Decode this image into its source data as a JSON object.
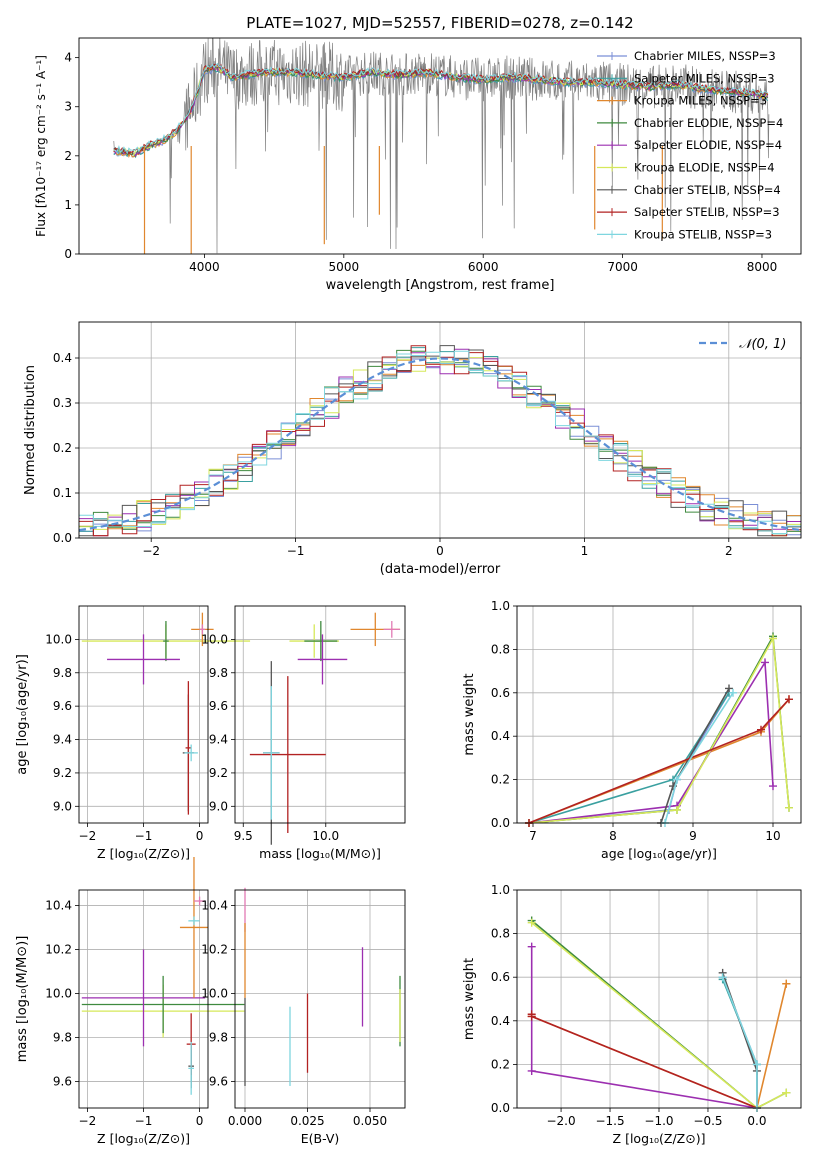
{
  "figure_title": "PLATE=1027, MJD=52557, FIBERID=0278, z=0.142",
  "colors": {
    "Chabrier MILES": "#7b8fd6",
    "Salpeter MILES": "#3aa0a0",
    "Kroupa MILES": "#e0872e",
    "Chabrier ELODIE": "#3f8a3f",
    "Salpeter ELODIE": "#9c2fb0",
    "Kroupa ELODIE": "#d6e85a",
    "Chabrier STELIB": "#555555",
    "Salpeter STELIB": "#b22222",
    "Kroupa STELIB": "#7fd6df",
    "data": "#808080",
    "normal": "#5b8fd6"
  },
  "chart_data": [
    {
      "id": "spectrum",
      "type": "line",
      "title": "PLATE=1027, MJD=52557, FIBERID=0278, z=0.142",
      "xlabel": "wavelength [Angstrom, rest frame]",
      "ylabel": "Flux [f_λ 10^-17 erg cm^-2 s^-1 A^-1]",
      "xlim": [
        3100,
        8280
      ],
      "ylim": [
        0,
        4.4
      ],
      "xticks": [
        4000,
        5000,
        6000,
        7000,
        8000
      ],
      "yticks": [
        0,
        1,
        2,
        3,
        4
      ],
      "grid": false,
      "legend": "right",
      "legend_entries": [
        {
          "label": "Chabrier MILES, N_SSP=3",
          "color": "#7b8fd6"
        },
        {
          "label": "Salpeter MILES, N_SSP=3",
          "color": "#3aa0a0"
        },
        {
          "label": "Kroupa MILES, N_SSP=3",
          "color": "#e0872e"
        },
        {
          "label": "Chabrier ELODIE, N_SSP=4",
          "color": "#3f8a3f"
        },
        {
          "label": "Salpeter ELODIE, N_SSP=4",
          "color": "#9c2fb0"
        },
        {
          "label": "Kroupa ELODIE, N_SSP=4",
          "color": "#d6e85a"
        },
        {
          "label": "Chabrier STELIB, N_SSP=4",
          "color": "#555555"
        },
        {
          "label": "Salpeter STELIB, N_SSP=3",
          "color": "#b22222"
        },
        {
          "label": "Kroupa STELIB, N_SSP=3",
          "color": "#7fd6df"
        }
      ],
      "model_continuum": {
        "x": [
          3350,
          3500,
          3600,
          3700,
          3800,
          3900,
          3950,
          4000,
          4100,
          4200,
          4400,
          4600,
          4800,
          5000,
          5200,
          5400,
          5600,
          5800,
          6000,
          6200,
          6400,
          6600,
          6800,
          7000,
          7200,
          7400,
          7600,
          7800,
          8000,
          8050
        ],
        "y": [
          2.1,
          2.05,
          2.2,
          2.3,
          2.5,
          2.9,
          3.3,
          3.75,
          3.8,
          3.6,
          3.7,
          3.7,
          3.65,
          3.6,
          3.7,
          3.65,
          3.7,
          3.6,
          3.55,
          3.6,
          3.55,
          3.5,
          3.5,
          3.45,
          3.4,
          3.45,
          3.35,
          3.3,
          3.25,
          3.2
        ]
      }
    },
    {
      "id": "residuals",
      "type": "line",
      "xlabel": "(data-model)/error",
      "ylabel": "Normed distribution",
      "xlim": [
        -2.5,
        2.5
      ],
      "ylim": [
        0,
        0.48
      ],
      "xticks": [
        -2,
        -1,
        0,
        1,
        2
      ],
      "yticks": [
        0.0,
        0.1,
        0.2,
        0.3,
        0.4
      ],
      "grid": true,
      "legend": "top-right",
      "legend_entries": [
        {
          "label": "𝒩(0, 1)",
          "color": "#5b8fd6"
        }
      ],
      "bin_width": 0.1,
      "series": [
        {
          "name": "N(0,1)",
          "mu": 0,
          "sigma": 1
        }
      ]
    },
    {
      "id": "age_vs_Z",
      "type": "scatter",
      "xlabel": "Z [log10(Z/Z⊙)]",
      "ylabel": "age [log10(age/yr)]",
      "xlim": [
        -2.15,
        0.15
      ],
      "ylim": [
        8.9,
        10.2
      ],
      "xticks": [
        -2,
        -1,
        0
      ],
      "yticks": [
        9.0,
        9.2,
        9.4,
        9.6,
        9.8,
        10.0
      ],
      "grid": true,
      "points": [
        {
          "color": "#d6e85a",
          "x": -0.6,
          "y": 9.99,
          "xerr": 1.5,
          "yerr": 0.1
        },
        {
          "color": "#3f8a3f",
          "x": -0.6,
          "y": 9.99,
          "xerr": 0.05,
          "yerr": 0.12
        },
        {
          "color": "#9c2fb0",
          "x": -1.0,
          "y": 9.88,
          "xerr": 0.65,
          "yerr": 0.15
        },
        {
          "color": "#e0872e",
          "x": 0.05,
          "y": 10.06,
          "xerr": 0.2,
          "yerr": 0.1
        },
        {
          "color": "#e27ab4",
          "x": 0.05,
          "y": 10.06,
          "xerr": 0.05,
          "yerr": 0.03
        },
        {
          "color": "#555555",
          "x": -0.2,
          "y": 9.32,
          "xerr": 0.1,
          "yerr": 0.35
        },
        {
          "color": "#b22222",
          "x": -0.2,
          "y": 9.35,
          "xerr": 0.05,
          "yerr": 0.4
        },
        {
          "color": "#7fd6df",
          "x": -0.15,
          "y": 9.32,
          "xerr": 0.12,
          "yerr": 0.05
        }
      ]
    },
    {
      "id": "age_vs_mass",
      "type": "scatter",
      "xlabel": "mass [log10(M/M⊙)]",
      "ylabel": "",
      "xlim": [
        9.45,
        10.48
      ],
      "ylim": [
        8.9,
        10.2
      ],
      "xticks": [
        9.5,
        10.0
      ],
      "yticks": [
        9.0,
        9.2,
        9.4,
        9.6,
        9.8,
        10.0
      ],
      "grid": true,
      "points": [
        {
          "color": "#d6e85a",
          "x": 9.93,
          "y": 9.99,
          "xerr": 0.15,
          "yerr": 0.1
        },
        {
          "color": "#3f8a3f",
          "x": 9.97,
          "y": 9.99,
          "xerr": 0.1,
          "yerr": 0.12
        },
        {
          "color": "#9c2fb0",
          "x": 9.98,
          "y": 9.88,
          "xerr": 0.15,
          "yerr": 0.15
        },
        {
          "color": "#e0872e",
          "x": 10.3,
          "y": 10.06,
          "xerr": 0.15,
          "yerr": 0.1
        },
        {
          "color": "#e27ab4",
          "x": 10.4,
          "y": 10.06,
          "xerr": 0.05,
          "yerr": 0.05
        },
        {
          "color": "#555555",
          "x": 9.67,
          "y": 9.32,
          "xerr": 0.05,
          "yerr": 0.55
        },
        {
          "color": "#b22222",
          "x": 9.77,
          "y": 9.31,
          "xerr": 0.23,
          "yerr": 0.47
        },
        {
          "color": "#7fd6df",
          "x": 9.67,
          "y": 9.32,
          "xerr": 0.05,
          "yerr": 0.4
        }
      ]
    },
    {
      "id": "massweight_vs_age",
      "type": "line",
      "xlabel": "age [log10(age/yr)]",
      "ylabel": "mass weight",
      "xlim": [
        6.8,
        10.35
      ],
      "ylim": [
        0,
        1.0
      ],
      "xticks": [
        7,
        8,
        9,
        10
      ],
      "yticks": [
        0.0,
        0.2,
        0.4,
        0.6,
        0.8,
        1.0
      ],
      "grid": true,
      "series": [
        {
          "name": "Chabrier MILES",
          "color": "#7b8fd6",
          "x": [
            6.95,
            8.7,
            8.8,
            9.45
          ],
          "y": [
            0.0,
            0.06,
            0.2,
            0.6
          ]
        },
        {
          "name": "Salpeter MILES",
          "color": "#3aa0a0",
          "x": [
            6.95,
            8.75,
            9.45
          ],
          "y": [
            0.0,
            0.2,
            0.6
          ]
        },
        {
          "name": "Kroupa MILES",
          "color": "#e0872e",
          "x": [
            6.95,
            9.85,
            10.2
          ],
          "y": [
            0.0,
            0.42,
            0.57
          ]
        },
        {
          "name": "Chabrier ELODIE",
          "color": "#3f8a3f",
          "x": [
            6.95,
            8.8,
            10.0,
            10.2
          ],
          "y": [
            0.0,
            0.06,
            0.86,
            0.07
          ]
        },
        {
          "name": "Salpeter ELODIE",
          "color": "#9c2fb0",
          "x": [
            6.95,
            8.8,
            9.9,
            10.0
          ],
          "y": [
            0.0,
            0.08,
            0.74,
            0.17
          ]
        },
        {
          "name": "Kroupa ELODIE",
          "color": "#d6e85a",
          "x": [
            6.95,
            8.8,
            10.0,
            10.2
          ],
          "y": [
            0.0,
            0.06,
            0.85,
            0.07
          ]
        },
        {
          "name": "Chabrier STELIB",
          "color": "#555555",
          "x": [
            8.6,
            8.75,
            9.45
          ],
          "y": [
            0.0,
            0.17,
            0.62
          ]
        },
        {
          "name": "Salpeter STELIB",
          "color": "#b22222",
          "x": [
            6.95,
            9.85,
            10.2
          ],
          "y": [
            0.0,
            0.43,
            0.57
          ]
        },
        {
          "name": "Kroupa STELIB",
          "color": "#7fd6df",
          "x": [
            8.65,
            8.8,
            9.5
          ],
          "y": [
            0.0,
            0.2,
            0.6
          ]
        }
      ]
    },
    {
      "id": "mass_vs_Z",
      "type": "scatter",
      "xlabel": "Z [log10(Z/Z⊙)]",
      "ylabel": "mass [log10(M/M⊙)]",
      "xlim": [
        -2.15,
        0.15
      ],
      "ylim": [
        9.48,
        10.47
      ],
      "xticks": [
        -2,
        -1,
        0
      ],
      "yticks": [
        9.6,
        9.8,
        10.0,
        10.2,
        10.4
      ],
      "grid": true,
      "points": [
        {
          "color": "#d6e85a",
          "x": -0.65,
          "y": 9.92,
          "xerr": 1.45,
          "yerr": 0.12
        },
        {
          "color": "#3f8a3f",
          "x": -0.65,
          "y": 9.95,
          "xerr": 1.45,
          "yerr": 0.13
        },
        {
          "color": "#9c2fb0",
          "x": -1.0,
          "y": 9.98,
          "xerr": 1.1,
          "yerr": 0.22
        },
        {
          "color": "#e0872e",
          "x": -0.1,
          "y": 10.3,
          "xerr": 0.25,
          "yerr": 0.32
        },
        {
          "color": "#e27ab4",
          "x": 0.0,
          "y": 10.42,
          "xerr": 0.1,
          "yerr": 0.02
        },
        {
          "color": "#7fd6df",
          "x": -0.1,
          "y": 10.33,
          "xerr": 0.1,
          "yerr": 0.02
        },
        {
          "color": "#555555",
          "x": -0.15,
          "y": 9.67,
          "xerr": 0.05,
          "yerr": 0.1
        },
        {
          "color": "#b22222",
          "x": -0.15,
          "y": 9.77,
          "xerr": 0.08,
          "yerr": 0.14
        },
        {
          "color": "#7fd6df",
          "x": -0.15,
          "y": 9.66,
          "xerr": 0.05,
          "yerr": 0.12
        }
      ]
    },
    {
      "id": "mass_vs_ebv",
      "type": "scatter",
      "xlabel": "E(B-V)",
      "ylabel": "",
      "xlim": [
        -0.004,
        0.064
      ],
      "ylim": [
        9.48,
        10.47
      ],
      "xticks": [
        0.0,
        0.025,
        0.05
      ],
      "yticks": [
        9.6,
        9.8,
        10.0,
        10.2,
        10.4
      ],
      "grid": true,
      "points": [
        {
          "color": "#e27ab4",
          "x": 0.0,
          "y": 10.38,
          "xerr": 0.0,
          "yerr": 0.1
        },
        {
          "color": "#e0872e",
          "x": 0.0,
          "y": 10.15,
          "xerr": 0.0,
          "yerr": 0.17
        },
        {
          "color": "#555555",
          "x": 0.0,
          "y": 9.78,
          "xerr": 0.0,
          "yerr": 0.2
        },
        {
          "color": "#7fd6df",
          "x": 0.018,
          "y": 9.76,
          "xerr": 0.0,
          "yerr": 0.18
        },
        {
          "color": "#b22222",
          "x": 0.025,
          "y": 9.82,
          "xerr": 0.0,
          "yerr": 0.18
        },
        {
          "color": "#9c2fb0",
          "x": 0.047,
          "y": 10.03,
          "xerr": 0.0,
          "yerr": 0.18
        },
        {
          "color": "#3f8a3f",
          "x": 0.062,
          "y": 9.92,
          "xerr": 0.0,
          "yerr": 0.16
        },
        {
          "color": "#d6e85a",
          "x": 0.062,
          "y": 9.9,
          "xerr": 0.0,
          "yerr": 0.12
        }
      ]
    },
    {
      "id": "massweight_vs_Z",
      "type": "line",
      "xlabel": "Z [log10(Z/Z⊙)]",
      "ylabel": "mass weight",
      "xlim": [
        -2.45,
        0.45
      ],
      "ylim": [
        0,
        1.0
      ],
      "xticks": [
        -2.0,
        -1.5,
        -1.0,
        -0.5,
        0.0
      ],
      "yticks": [
        0.0,
        0.2,
        0.4,
        0.6,
        0.8,
        1.0
      ],
      "grid": true,
      "series": [
        {
          "name": "Chabrier MILES",
          "color": "#7b8fd6",
          "x": [
            -0.35,
            0.0,
            0.0
          ],
          "y": [
            0.6,
            0.2,
            0.0
          ]
        },
        {
          "name": "Salpeter MILES",
          "color": "#3aa0a0",
          "x": [
            -0.35,
            0.0,
            0.0
          ],
          "y": [
            0.59,
            0.2,
            0.0
          ]
        },
        {
          "name": "Kroupa MILES",
          "color": "#e0872e",
          "x": [
            -2.3,
            0.0,
            0.3,
            0.3
          ],
          "y": [
            0.42,
            0.0,
            0.57,
            0.57
          ]
        },
        {
          "name": "Chabrier ELODIE",
          "color": "#3f8a3f",
          "x": [
            -2.3,
            0.0,
            0.3
          ],
          "y": [
            0.86,
            0.0,
            0.07
          ]
        },
        {
          "name": "Salpeter ELODIE",
          "color": "#9c2fb0",
          "x": [
            -2.3,
            -2.3,
            0.0
          ],
          "y": [
            0.74,
            0.17,
            0.0
          ]
        },
        {
          "name": "Kroupa ELODIE",
          "color": "#d6e85a",
          "x": [
            -2.3,
            0.0,
            0.3
          ],
          "y": [
            0.85,
            0.0,
            0.07
          ]
        },
        {
          "name": "Chabrier STELIB",
          "color": "#555555",
          "x": [
            -0.35,
            0.0,
            0.0
          ],
          "y": [
            0.62,
            0.17,
            0.0
          ]
        },
        {
          "name": "Salpeter STELIB",
          "color": "#b22222",
          "x": [
            -2.3,
            -2.3,
            0.0
          ],
          "y": [
            0.43,
            0.42,
            0.0
          ]
        },
        {
          "name": "Kroupa STELIB",
          "color": "#7fd6df",
          "x": [
            -0.35,
            0.0,
            0.0
          ],
          "y": [
            0.6,
            0.2,
            0.0
          ]
        }
      ]
    }
  ]
}
